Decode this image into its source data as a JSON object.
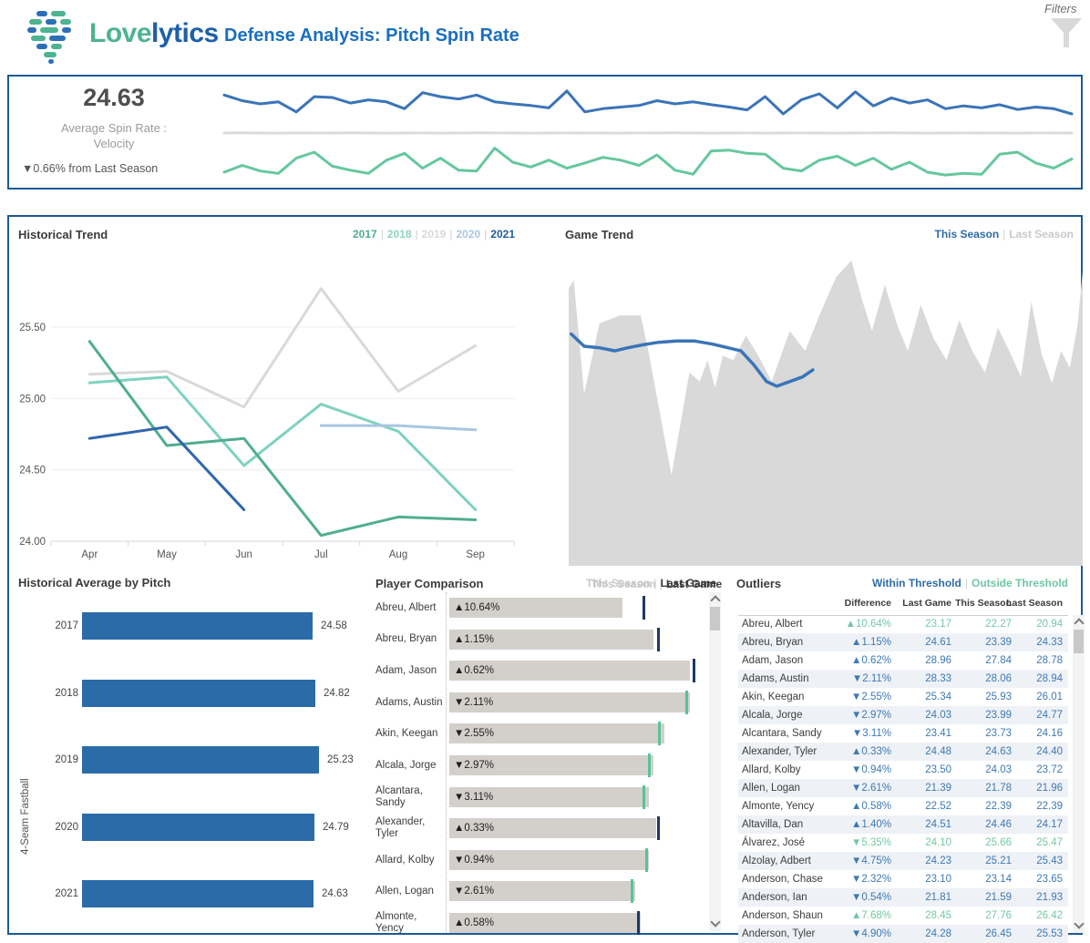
{
  "header": {
    "brand_love": "Love",
    "brand_lytics": "lytics",
    "brand_love_color": "#4db391",
    "brand_lytics_color": "#1e5fa8",
    "title": "Defense Analysis: Pitch Spin Rate",
    "filters_label": "Filters"
  },
  "kpi": {
    "value": "24.63",
    "label_line1": "Average Spin Rate :",
    "label_line2": "Velocity",
    "delta": "▼0.66% from Last Season"
  },
  "sections": {
    "historical_trend": {
      "title": "Historical Trend",
      "legend": [
        {
          "label": "2017",
          "color": "#4fae8f"
        },
        {
          "label": "2018",
          "color": "#8fd4c2"
        },
        {
          "label": "2019",
          "color": "#d9d9d9"
        },
        {
          "label": "2020",
          "color": "#aac7e0"
        },
        {
          "label": "2021",
          "color": "#1f5c99"
        }
      ]
    },
    "game_trend": {
      "title": "Game Trend",
      "legend_top": [
        {
          "label": "This Season",
          "color": "#2e6da8"
        },
        {
          "label": "Last Season",
          "color": "#c9c9c9"
        }
      ],
      "legend_bottom": [
        {
          "label": "This Season",
          "color": "#c9c9c9"
        },
        {
          "label": "Last Game",
          "color": "#3b3b3b"
        }
      ]
    },
    "historical_average": {
      "title": "Historical Average by Pitch",
      "ylabel": "4-Seam Fastball"
    },
    "player_comparison": {
      "title": "Player Comparison",
      "legend": [
        {
          "label": "This Season",
          "color": "#c9c9c9"
        },
        {
          "label": "Last Game",
          "color": "#3b3b3b"
        }
      ]
    },
    "outliers": {
      "title": "Outliers",
      "legend": [
        {
          "label": "Within Threshold",
          "color": "#2e6da8"
        },
        {
          "label": "Outside Threshold",
          "color": "#6fc7a2"
        }
      ]
    }
  },
  "chart_data": [
    {
      "id": "kpi-sparklines",
      "type": "line",
      "title": "Average Spin Rate : Velocity trend",
      "series": [
        {
          "name": "spin-rate",
          "color": "#3a74b8",
          "values": [
            0.72,
            0.58,
            0.5,
            0.55,
            0.3,
            0.68,
            0.66,
            0.52,
            0.6,
            0.55,
            0.38,
            0.78,
            0.68,
            0.62,
            0.72,
            0.55,
            0.5,
            0.46,
            0.4,
            0.82,
            0.3,
            0.38,
            0.42,
            0.46,
            0.58,
            0.5,
            0.55,
            0.48,
            0.42,
            0.35,
            0.68,
            0.25,
            0.6,
            0.75,
            0.4,
            0.8,
            0.45,
            0.65,
            0.52,
            0.6,
            0.38,
            0.45,
            0.4,
            0.48,
            0.36,
            0.42,
            0.38,
            0.25
          ]
        },
        {
          "name": "baseline",
          "color": "#dcdcdc",
          "values": [
            0.5,
            0.52,
            0.5,
            0.49,
            0.51,
            0.5,
            0.5,
            0.52,
            0.5,
            0.49,
            0.5,
            0.51,
            0.49,
            0.5,
            0.52,
            0.51,
            0.5,
            0.49,
            0.5,
            0.51,
            0.5,
            0.5,
            0.49,
            0.51,
            0.5,
            0.52,
            0.5,
            0.49,
            0.5,
            0.51,
            0.49,
            0.5,
            0.51,
            0.5,
            0.49,
            0.5,
            0.51,
            0.52,
            0.5,
            0.49,
            0.5,
            0.51,
            0.5,
            0.5,
            0.49,
            0.51,
            0.5,
            0.5
          ]
        },
        {
          "name": "velocity",
          "color": "#66c79e",
          "values": [
            0.25,
            0.42,
            0.28,
            0.22,
            0.6,
            0.75,
            0.4,
            0.3,
            0.22,
            0.55,
            0.72,
            0.35,
            0.6,
            0.3,
            0.28,
            0.85,
            0.5,
            0.38,
            0.55,
            0.35,
            0.48,
            0.62,
            0.55,
            0.42,
            0.68,
            0.3,
            0.2,
            0.78,
            0.8,
            0.72,
            0.7,
            0.35,
            0.28,
            0.55,
            0.65,
            0.42,
            0.6,
            0.32,
            0.5,
            0.25,
            0.18,
            0.22,
            0.2,
            0.7,
            0.75,
            0.48,
            0.35,
            0.58
          ]
        }
      ]
    },
    {
      "id": "historical-trend",
      "type": "line",
      "title": "Historical Trend",
      "x": [
        "Apr",
        "May",
        "Jun",
        "Jul",
        "Aug",
        "Sep"
      ],
      "ylim": [
        24.0,
        25.9
      ],
      "yticks": [
        {
          "v": 24.0,
          "label": "24.00"
        },
        {
          "v": 24.5,
          "label": "24.50"
        },
        {
          "v": 25.0,
          "label": "25.00"
        },
        {
          "v": 25.5,
          "label": "25.50"
        }
      ],
      "series": [
        {
          "name": "2019",
          "color": "#d9d9d9",
          "values": [
            25.17,
            25.19,
            24.94,
            25.77,
            25.05,
            25.37
          ]
        },
        {
          "name": "2018",
          "color": "#7fd1c0",
          "values": [
            25.11,
            25.15,
            24.53,
            24.96,
            24.77,
            24.22
          ]
        },
        {
          "name": "2017",
          "color": "#4fae8f",
          "values": [
            25.4,
            24.67,
            24.72,
            24.04,
            24.17,
            24.15
          ]
        },
        {
          "name": "2020",
          "color": "#a9c6e3",
          "values": [
            null,
            null,
            null,
            24.81,
            24.81,
            24.78
          ]
        },
        {
          "name": "2021",
          "color": "#2f66ad",
          "values": [
            24.72,
            24.8,
            24.22,
            null,
            null,
            null
          ]
        }
      ]
    },
    {
      "id": "game-trend",
      "type": "area",
      "title": "Game Trend",
      "series": [
        {
          "name": "Last Season",
          "color": "#d9d9d9",
          "points": [
            [
              0,
              0.095
            ],
            [
              0.01,
              0.07
            ],
            [
              0.03,
              0.44
            ],
            [
              0.06,
              0.21
            ],
            [
              0.1,
              0.185
            ],
            [
              0.14,
              0.185
            ],
            [
              0.155,
              0.3
            ],
            [
              0.2,
              0.705
            ],
            [
              0.235,
              0.37
            ],
            [
              0.255,
              0.4
            ],
            [
              0.27,
              0.33
            ],
            [
              0.285,
              0.42
            ],
            [
              0.3,
              0.315
            ],
            [
              0.32,
              0.33
            ],
            [
              0.345,
              0.25
            ],
            [
              0.37,
              0.32
            ],
            [
              0.395,
              0.4
            ],
            [
              0.43,
              0.235
            ],
            [
              0.46,
              0.3
            ],
            [
              0.49,
              0.175
            ],
            [
              0.52,
              0.06
            ],
            [
              0.55,
              0.005
            ],
            [
              0.57,
              0.13
            ],
            [
              0.59,
              0.235
            ],
            [
              0.615,
              0.085
            ],
            [
              0.64,
              0.22
            ],
            [
              0.66,
              0.3
            ],
            [
              0.685,
              0.15
            ],
            [
              0.71,
              0.26
            ],
            [
              0.735,
              0.33
            ],
            [
              0.76,
              0.2
            ],
            [
              0.785,
              0.3
            ],
            [
              0.81,
              0.37
            ],
            [
              0.835,
              0.225
            ],
            [
              0.86,
              0.31
            ],
            [
              0.88,
              0.385
            ],
            [
              0.9,
              0.14
            ],
            [
              0.92,
              0.31
            ],
            [
              0.94,
              0.405
            ],
            [
              0.958,
              0.3
            ],
            [
              0.975,
              0.355
            ],
            [
              0.99,
              0.215
            ],
            [
              1,
              0.04
            ]
          ]
        },
        {
          "name": "This Season",
          "color": "#3a74b8",
          "points": [
            [
              0.005,
              0.245
            ],
            [
              0.03,
              0.285
            ],
            [
              0.06,
              0.29
            ],
            [
              0.09,
              0.3
            ],
            [
              0.115,
              0.29
            ],
            [
              0.145,
              0.28
            ],
            [
              0.175,
              0.272
            ],
            [
              0.21,
              0.268
            ],
            [
              0.245,
              0.268
            ],
            [
              0.28,
              0.278
            ],
            [
              0.31,
              0.29
            ],
            [
              0.335,
              0.3
            ],
            [
              0.36,
              0.345
            ],
            [
              0.385,
              0.4
            ],
            [
              0.405,
              0.415
            ],
            [
              0.43,
              0.4
            ],
            [
              0.455,
              0.385
            ],
            [
              0.475,
              0.362
            ]
          ]
        }
      ]
    },
    {
      "id": "historical-average-by-pitch",
      "type": "bar",
      "title": "Historical Average by Pitch",
      "ylabel": "4-Seam Fastball",
      "categories": [
        "2017",
        "2018",
        "2019",
        "2020",
        "2021"
      ],
      "values": [
        24.58,
        24.82,
        25.23,
        24.79,
        24.63
      ],
      "value_labels": [
        "24.58",
        "24.82",
        "25.23",
        "24.79",
        "24.63"
      ],
      "bar_color": "#2b6ba8"
    },
    {
      "id": "player-comparison",
      "type": "bar",
      "title": "Player Comparison",
      "bar_color": "#d3d0cb",
      "tick_colors": {
        "navy": "#1f3864",
        "green": "#57c39b"
      },
      "rows": [
        {
          "player": "Abreu, Albert",
          "label": "▲10.64%",
          "bar_pct": 67,
          "tick_pct": 75,
          "tick": "navy"
        },
        {
          "player": "Abreu, Bryan",
          "label": "▲1.15%",
          "bar_pct": 79,
          "tick_pct": 80.5,
          "tick": "navy"
        },
        {
          "player": "Adam, Jason",
          "label": "▲0.62%",
          "bar_pct": 93,
          "tick_pct": 94.5,
          "tick": "navy"
        },
        {
          "player": "Adams, Austin",
          "label": "▼2.11%",
          "bar_pct": 93,
          "tick_pct": 91.5,
          "tick": "green"
        },
        {
          "player": "Akin, Keegan",
          "label": "▼2.55%",
          "bar_pct": 83,
          "tick_pct": 81,
          "tick": "green"
        },
        {
          "player": "Alcala, Jorge",
          "label": "▼2.97%",
          "bar_pct": 79,
          "tick_pct": 77,
          "tick": "green"
        },
        {
          "player": "Alcantara, Sandy",
          "label": "▼3.11%",
          "bar_pct": 77,
          "tick_pct": 75,
          "tick": "green"
        },
        {
          "player": "Alexander, Tyler",
          "label": "▲0.33%",
          "bar_pct": 80,
          "tick_pct": 80.5,
          "tick": "navy"
        },
        {
          "player": "Allard, Kolby",
          "label": "▼0.94%",
          "bar_pct": 77,
          "tick_pct": 76,
          "tick": "green"
        },
        {
          "player": "Allen, Logan",
          "label": "▼2.61%",
          "bar_pct": 72,
          "tick_pct": 70.5,
          "tick": "green"
        },
        {
          "player": "Almonte, Yency",
          "label": "▲0.58%",
          "bar_pct": 74,
          "tick_pct": 73,
          "tick": "navy"
        }
      ]
    },
    {
      "id": "outliers",
      "type": "table",
      "title": "Outliers",
      "columns": [
        "Difference",
        "Last Game",
        "This Season",
        "Last Season"
      ],
      "within_color": "#3e79b4",
      "outside_color": "#74c7a3",
      "rows": [
        {
          "player": "Abreu, Albert",
          "difference": "▲10.64%",
          "last_game": "23.17",
          "this_season": "22.27",
          "last_season": "20.94",
          "threshold": "outside"
        },
        {
          "player": "Abreu, Bryan",
          "difference": "▲1.15%",
          "last_game": "24.61",
          "this_season": "23.39",
          "last_season": "24.33",
          "threshold": "within"
        },
        {
          "player": "Adam, Jason",
          "difference": "▲0.62%",
          "last_game": "28.96",
          "this_season": "27.84",
          "last_season": "28.78",
          "threshold": "within"
        },
        {
          "player": "Adams, Austin",
          "difference": "▼2.11%",
          "last_game": "28.33",
          "this_season": "28.06",
          "last_season": "28.94",
          "threshold": "within"
        },
        {
          "player": "Akin, Keegan",
          "difference": "▼2.55%",
          "last_game": "25.34",
          "this_season": "25.93",
          "last_season": "26.01",
          "threshold": "within"
        },
        {
          "player": "Alcala, Jorge",
          "difference": "▼2.97%",
          "last_game": "24.03",
          "this_season": "23.99",
          "last_season": "24.77",
          "threshold": "within"
        },
        {
          "player": "Alcantara, Sandy",
          "difference": "▼3.11%",
          "last_game": "23.41",
          "this_season": "23.73",
          "last_season": "24.16",
          "threshold": "within"
        },
        {
          "player": "Alexander, Tyler",
          "difference": "▲0.33%",
          "last_game": "24.48",
          "this_season": "24.63",
          "last_season": "24.40",
          "threshold": "within"
        },
        {
          "player": "Allard, Kolby",
          "difference": "▼0.94%",
          "last_game": "23.50",
          "this_season": "24.03",
          "last_season": "23.72",
          "threshold": "within"
        },
        {
          "player": "Allen, Logan",
          "difference": "▼2.61%",
          "last_game": "21.39",
          "this_season": "21.78",
          "last_season": "21.96",
          "threshold": "within"
        },
        {
          "player": "Almonte, Yency",
          "difference": "▲0.58%",
          "last_game": "22.52",
          "this_season": "22.39",
          "last_season": "22.39",
          "threshold": "within"
        },
        {
          "player": "Altavilla, Dan",
          "difference": "▲1.40%",
          "last_game": "24.51",
          "this_season": "24.46",
          "last_season": "24.17",
          "threshold": "within"
        },
        {
          "player": "Álvarez, José",
          "difference": "▼5.35%",
          "last_game": "24.10",
          "this_season": "25.66",
          "last_season": "25.47",
          "threshold": "outside"
        },
        {
          "player": "Alzolay, Adbert",
          "difference": "▼4.75%",
          "last_game": "24.23",
          "this_season": "25.21",
          "last_season": "25.43",
          "threshold": "within"
        },
        {
          "player": "Anderson, Chase",
          "difference": "▼2.32%",
          "last_game": "23.10",
          "this_season": "23.14",
          "last_season": "23.65",
          "threshold": "within"
        },
        {
          "player": "Anderson, Ian",
          "difference": "▼0.54%",
          "last_game": "21.81",
          "this_season": "21.59",
          "last_season": "21.93",
          "threshold": "within"
        },
        {
          "player": "Anderson, Shaun",
          "difference": "▲7.68%",
          "last_game": "28.45",
          "this_season": "27.76",
          "last_season": "26.42",
          "threshold": "outside"
        },
        {
          "player": "Anderson, Tyler",
          "difference": "▼4.90%",
          "last_game": "24.28",
          "this_season": "26.45",
          "last_season": "25.53",
          "threshold": "within"
        }
      ]
    }
  ]
}
